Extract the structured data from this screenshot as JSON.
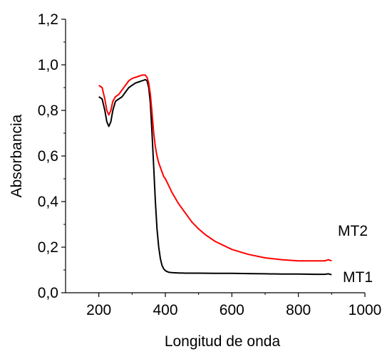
{
  "chart_data": {
    "type": "line",
    "title": "",
    "xlabel": "Longitud de onda",
    "ylabel": "Absorbancia",
    "xlim": [
      100,
      1000
    ],
    "ylim": [
      0,
      1.2
    ],
    "x_ticks": [
      200,
      400,
      600,
      800,
      1000
    ],
    "x_tick_labels": [
      "200",
      "400",
      "600",
      "800",
      "1000"
    ],
    "y_ticks": [
      0,
      0.2,
      0.4,
      0.6,
      0.8,
      1.0,
      1.2
    ],
    "y_tick_labels": [
      "0,0",
      "0,2",
      "0,4",
      "0,6",
      "0,8",
      "1,0",
      "1,2"
    ],
    "grid": false,
    "series": [
      {
        "name": "MT1",
        "color": "#000000",
        "x": [
          200,
          210,
          218,
          224,
          230,
          236,
          242,
          250,
          260,
          270,
          280,
          290,
          300,
          310,
          320,
          330,
          340,
          345,
          350,
          355,
          360,
          365,
          370,
          375,
          380,
          385,
          390,
          395,
          400,
          405,
          410,
          420,
          440,
          460,
          500,
          550,
          600,
          650,
          700,
          750,
          800,
          850,
          880,
          890,
          900
        ],
        "y": [
          0.86,
          0.85,
          0.8,
          0.75,
          0.73,
          0.75,
          0.8,
          0.84,
          0.85,
          0.86,
          0.88,
          0.9,
          0.91,
          0.92,
          0.925,
          0.93,
          0.935,
          0.93,
          0.9,
          0.83,
          0.7,
          0.55,
          0.4,
          0.28,
          0.2,
          0.15,
          0.12,
          0.105,
          0.097,
          0.093,
          0.09,
          0.088,
          0.087,
          0.086,
          0.086,
          0.085,
          0.085,
          0.084,
          0.083,
          0.082,
          0.082,
          0.081,
          0.081,
          0.083,
          0.079
        ]
      },
      {
        "name": "MT2",
        "color": "#ff0000",
        "x": [
          200,
          210,
          218,
          224,
          230,
          236,
          242,
          250,
          260,
          270,
          280,
          290,
          300,
          310,
          320,
          330,
          340,
          345,
          350,
          355,
          360,
          365,
          370,
          375,
          380,
          385,
          390,
          395,
          400,
          410,
          420,
          440,
          460,
          480,
          500,
          520,
          550,
          600,
          650,
          700,
          750,
          800,
          850,
          880,
          890,
          900
        ],
        "y": [
          0.91,
          0.9,
          0.85,
          0.8,
          0.78,
          0.8,
          0.84,
          0.86,
          0.87,
          0.89,
          0.91,
          0.93,
          0.94,
          0.945,
          0.95,
          0.955,
          0.955,
          0.945,
          0.92,
          0.87,
          0.79,
          0.7,
          0.64,
          0.6,
          0.57,
          0.55,
          0.53,
          0.51,
          0.5,
          0.47,
          0.44,
          0.39,
          0.35,
          0.31,
          0.28,
          0.255,
          0.225,
          0.19,
          0.168,
          0.153,
          0.145,
          0.14,
          0.14,
          0.14,
          0.145,
          0.14
        ]
      }
    ],
    "annotations": [
      {
        "text": "MT2",
        "series": "MT2"
      },
      {
        "text": "MT1",
        "series": "MT1"
      }
    ]
  }
}
